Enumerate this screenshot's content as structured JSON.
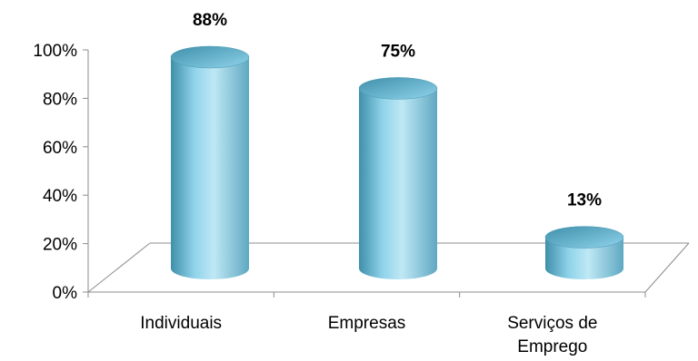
{
  "chart_data": {
    "type": "bar",
    "style": "3d-cylinder",
    "categories": [
      "Individuais",
      "Empresas",
      "Serviços de Emprego"
    ],
    "category_lines": [
      [
        "Individuais"
      ],
      [
        "Empresas"
      ],
      [
        "Serviços de",
        "Emprego"
      ]
    ],
    "values": [
      88,
      75,
      13
    ],
    "data_labels": [
      "88%",
      "75%",
      "13%"
    ],
    "yticks": [
      "0%",
      "20%",
      "40%",
      "60%",
      "80%",
      "100%"
    ],
    "ylim": [
      0,
      100
    ],
    "grid": false,
    "legend": false,
    "title": "",
    "xlabel": "",
    "ylabel": "",
    "colors": {
      "bar_light": "#bfe8f5",
      "bar_mid": "#8fd3ea",
      "bar_dark": "#3f8faa",
      "bar_top": "#5fa8c2",
      "axis": "#8c8c8c"
    }
  }
}
